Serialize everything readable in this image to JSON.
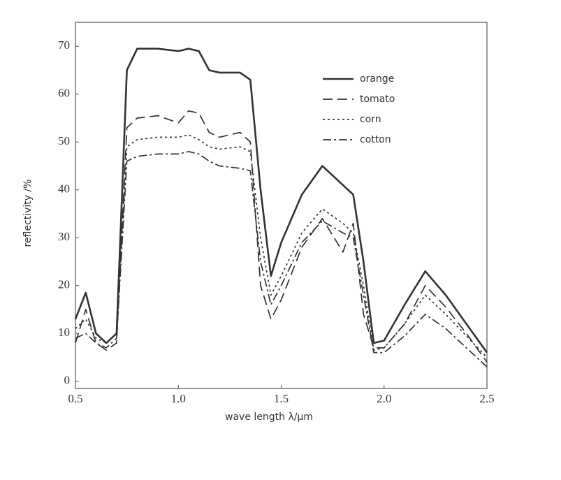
{
  "chart_data": {
    "type": "line",
    "x_label": "wave length  λ/μm",
    "y_label": "reflectivity /%",
    "x": [
      0.5,
      0.55,
      0.6,
      0.65,
      0.7,
      0.75,
      0.8,
      0.9,
      1.0,
      1.05,
      1.1,
      1.15,
      1.2,
      1.3,
      1.35,
      1.4,
      1.45,
      1.5,
      1.6,
      1.7,
      1.8,
      1.85,
      1.9,
      1.95,
      2.0,
      2.1,
      2.2,
      2.3,
      2.4,
      2.5
    ],
    "series": [
      {
        "name": "orange",
        "color": "#333333",
        "dash": "solid",
        "values": [
          13,
          18.5,
          10,
          8,
          10,
          65,
          69.5,
          69.5,
          69,
          69.5,
          69,
          65,
          64.5,
          64.5,
          63,
          40,
          22,
          29,
          39,
          45,
          41,
          39,
          25,
          8,
          8.5,
          16,
          23,
          18,
          12,
          6
        ]
      },
      {
        "name": "tomato",
        "color": "#333333",
        "dash": "dashed",
        "values": [
          8,
          15,
          8,
          6.5,
          8,
          53,
          55,
          55.5,
          54,
          56.5,
          56,
          52,
          51,
          52,
          50,
          20,
          13,
          17,
          28,
          34,
          27,
          33,
          14,
          7,
          7,
          12,
          20,
          15.5,
          10,
          4
        ]
      },
      {
        "name": "corn",
        "color": "#333333",
        "dash": "dotted",
        "values": [
          11,
          13,
          9,
          8,
          10,
          49,
          50.5,
          51,
          51,
          51.5,
          50.5,
          49,
          48.5,
          49,
          48,
          30,
          18,
          22,
          31,
          36,
          33,
          31,
          20,
          6.5,
          7,
          12,
          18,
          14,
          9.5,
          5
        ]
      },
      {
        "name": "cotton",
        "color": "#333333",
        "dash": "dashdot",
        "values": [
          9,
          10,
          8,
          7,
          9,
          46,
          47,
          47.5,
          47.5,
          48,
          47.5,
          46,
          45,
          44.5,
          44,
          25,
          16,
          20,
          29,
          33.5,
          31,
          30,
          18,
          6,
          6,
          9.5,
          14,
          11,
          7,
          3
        ]
      }
    ],
    "xlim": [
      0.5,
      2.5
    ],
    "xticks": [
      0.5,
      {
        "value": 1,
        "label": "1.0"
      },
      1.5,
      {
        "value": 2,
        "label": "2.0"
      },
      2.5
    ],
    "ylim": [
      -1.5,
      75
    ],
    "yticks": [
      0,
      10,
      20,
      30,
      40,
      50,
      60,
      70
    ],
    "grid": false,
    "legend": "upper right"
  }
}
